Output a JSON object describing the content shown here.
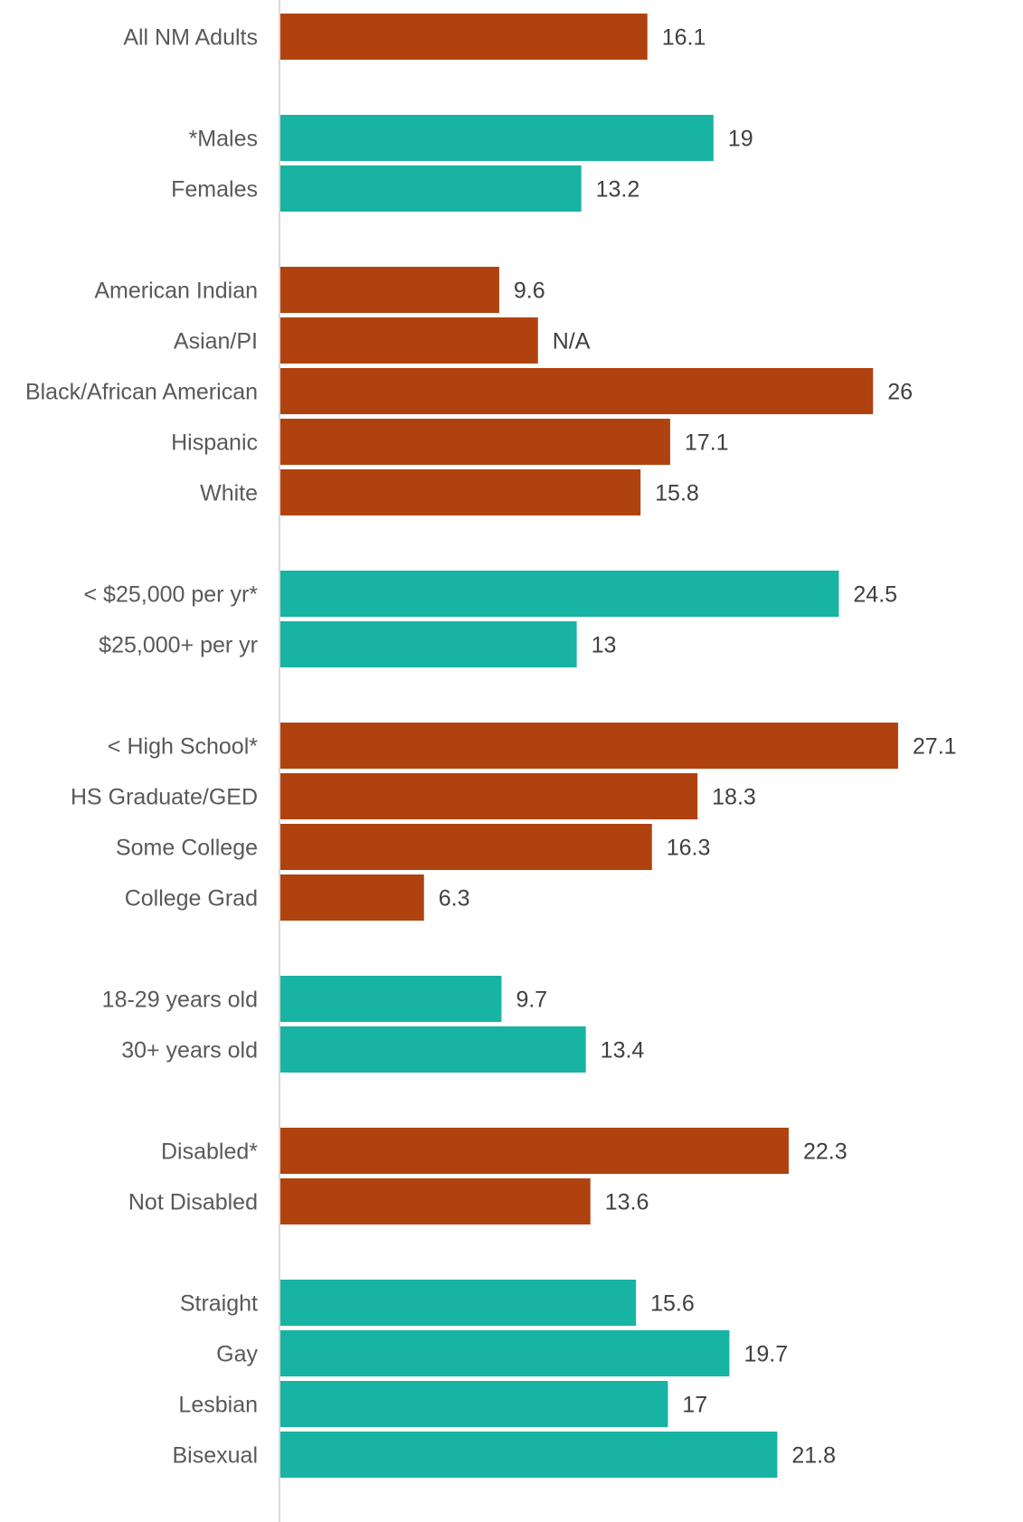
{
  "chart_data": {
    "type": "bar",
    "orientation": "horizontal",
    "xlim": [
      0,
      27.5
    ],
    "grid": false,
    "legend": "none",
    "colors": {
      "orange": "#b0420f",
      "teal": "#17b3a3",
      "axis": "#d9d9d9"
    },
    "groups": [
      {
        "color": "orange",
        "items": [
          {
            "label": "All NM Adults",
            "value": 16.1,
            "value_label": "16.1"
          }
        ]
      },
      {
        "color": "teal",
        "items": [
          {
            "label": "*Males",
            "value": 19,
            "value_label": "19"
          },
          {
            "label": "Females",
            "value": 13.2,
            "value_label": "13.2"
          }
        ]
      },
      {
        "color": "orange",
        "items": [
          {
            "label": "American Indian",
            "value": 9.6,
            "value_label": "9.6"
          },
          {
            "label": "Asian/PI",
            "value": 11.3,
            "value_label": "N/A"
          },
          {
            "label": "Black/African American",
            "value": 26,
            "value_label": "26"
          },
          {
            "label": "Hispanic",
            "value": 17.1,
            "value_label": "17.1"
          },
          {
            "label": "White",
            "value": 15.8,
            "value_label": "15.8"
          }
        ]
      },
      {
        "color": "teal",
        "items": [
          {
            "label": "< $25,000 per yr*",
            "value": 24.5,
            "value_label": "24.5"
          },
          {
            "label": "$25,000+ per yr",
            "value": 13,
            "value_label": "13"
          }
        ]
      },
      {
        "color": "orange",
        "items": [
          {
            "label": "< High School*",
            "value": 27.1,
            "value_label": "27.1"
          },
          {
            "label": "HS Graduate/GED",
            "value": 18.3,
            "value_label": "18.3"
          },
          {
            "label": "Some College",
            "value": 16.3,
            "value_label": "16.3"
          },
          {
            "label": "College Grad",
            "value": 6.3,
            "value_label": "6.3"
          }
        ]
      },
      {
        "color": "teal",
        "items": [
          {
            "label": "18-29 years old",
            "value": 9.7,
            "value_label": "9.7"
          },
          {
            "label": "30+ years old",
            "value": 13.4,
            "value_label": "13.4"
          }
        ]
      },
      {
        "color": "orange",
        "items": [
          {
            "label": "Disabled*",
            "value": 22.3,
            "value_label": "22.3"
          },
          {
            "label": "Not Disabled",
            "value": 13.6,
            "value_label": "13.6"
          }
        ]
      },
      {
        "color": "teal",
        "items": [
          {
            "label": "Straight",
            "value": 15.6,
            "value_label": "15.6"
          },
          {
            "label": "Gay",
            "value": 19.7,
            "value_label": "19.7"
          },
          {
            "label": "Lesbian",
            "value": 17,
            "value_label": "17"
          },
          {
            "label": "Bisexual",
            "value": 21.8,
            "value_label": "21.8"
          }
        ]
      }
    ]
  }
}
